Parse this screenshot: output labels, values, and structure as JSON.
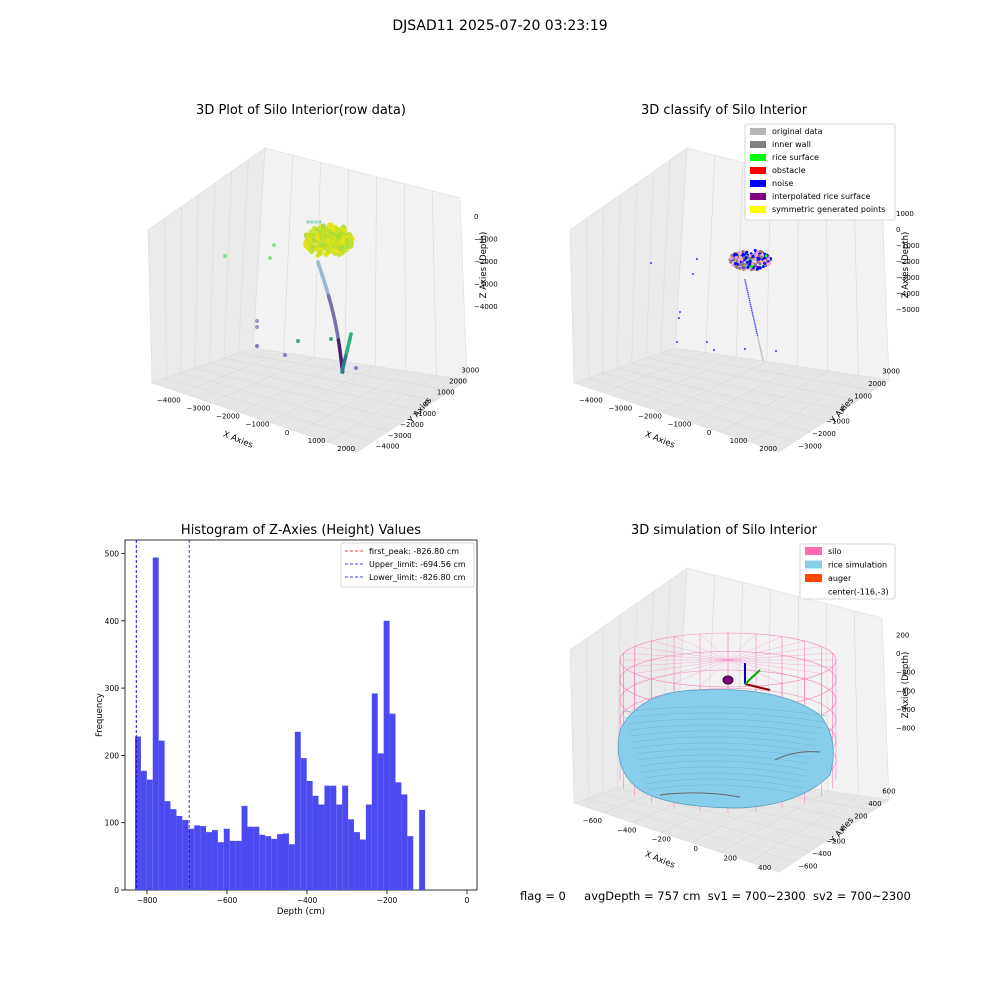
{
  "suptitle": "DJSAD11 2025-07-20 03:23:19",
  "status": {
    "flag": "flag = 0",
    "avg_depth": "avgDepth = 757 cm",
    "sv1": "sv1 = 700~2300",
    "sv2": "sv2 = 700~2300"
  },
  "panel1": {
    "title": "3D Plot of Silo Interior(row data)",
    "xlabel": "X Axies",
    "ylabel": "Y Axies",
    "zlabel": "Z Axies (Depth)",
    "xticks": [
      "−4000",
      "−3000",
      "−2000",
      "−1000",
      "0",
      "1000",
      "2000"
    ],
    "yticks": [
      "−4000",
      "−3000",
      "−2000",
      "−1000",
      "0",
      "1000",
      "2000",
      "3000"
    ],
    "zticks": [
      "0",
      "−1000",
      "−2000",
      "−3000",
      "−4000"
    ]
  },
  "panel2": {
    "title": "3D classify of Silo Interior",
    "xlabel": "X Axies",
    "ylabel": "Y Axies",
    "zlabel": "Z Axies (Depth)",
    "xticks": [
      "−4000",
      "−3000",
      "−2000",
      "−1000",
      "0",
      "1000",
      "2000"
    ],
    "yticks": [
      "−3000",
      "−2000",
      "−1000",
      "0",
      "1000",
      "2000",
      "3000"
    ],
    "zticks": [
      "1000",
      "0",
      "−1000",
      "−2000",
      "−3000",
      "−4000",
      "−5000"
    ],
    "legend": [
      {
        "label": "original data",
        "color": "#b4b4b4"
      },
      {
        "label": "inner wall",
        "color": "#808080"
      },
      {
        "label": "rice surface",
        "color": "#00ff00"
      },
      {
        "label": "obstacle",
        "color": "#ff0000"
      },
      {
        "label": "noise",
        "color": "#0000ff"
      },
      {
        "label": "interpolated rice surface",
        "color": "#800080"
      },
      {
        "label": "symmetric generated points",
        "color": "#ffff00"
      }
    ]
  },
  "panel4": {
    "title": "3D simulation of Silo Interior",
    "xlabel": "X Axies",
    "ylabel": "Y Axies",
    "zlabel": "Z Axies (Depth)",
    "xticks": [
      "−600",
      "−400",
      "−200",
      "0",
      "200",
      "400"
    ],
    "yticks": [
      "−600",
      "−400",
      "−200",
      "0",
      "200",
      "400",
      "600"
    ],
    "zticks": [
      "200",
      "0",
      "−200",
      "−400",
      "−600",
      "−800"
    ],
    "legend": [
      {
        "label": "silo",
        "color": "#ff69b4"
      },
      {
        "label": "rice simulation",
        "color": "#87ceeb"
      },
      {
        "label": "auger",
        "color": "#ff4500"
      },
      {
        "label": "center(-116,-3)",
        "color": "none"
      }
    ]
  },
  "chart_data": {
    "type": "bar",
    "title": "Histogram of Z-Axies (Height) Values",
    "xlabel": "Depth (cm)",
    "ylabel": "Frequency",
    "xlim": [
      -855,
      25
    ],
    "ylim": [
      0,
      520
    ],
    "xticks": [
      -800,
      -600,
      -400,
      -200,
      0
    ],
    "yticks": [
      0,
      100,
      200,
      300,
      400,
      500
    ],
    "bin_start": -830,
    "bin_width": 14.8,
    "values": [
      228,
      177,
      164,
      494,
      222,
      132,
      120,
      110,
      104,
      91,
      96,
      95,
      86,
      89,
      71,
      91,
      73,
      73,
      125,
      94,
      94,
      82,
      80,
      76,
      83,
      84,
      68,
      235,
      196,
      162,
      140,
      127,
      155,
      155,
      127,
      155,
      105,
      86,
      75,
      127,
      292,
      203,
      400,
      262,
      160,
      142,
      80,
      0,
      119
    ],
    "bar_color": "#4a4af0",
    "vlines": [
      {
        "label": "first_peak: -826.80 cm",
        "x": -826.8,
        "color": "#ff0000"
      },
      {
        "label": "Upper_limit: -694.56 cm",
        "x": -694.56,
        "color": "#0000ff"
      },
      {
        "label": "Lower_limit: -826.80 cm",
        "x": -826.8,
        "color": "#0000ff"
      }
    ],
    "legend_position": "top-right"
  }
}
